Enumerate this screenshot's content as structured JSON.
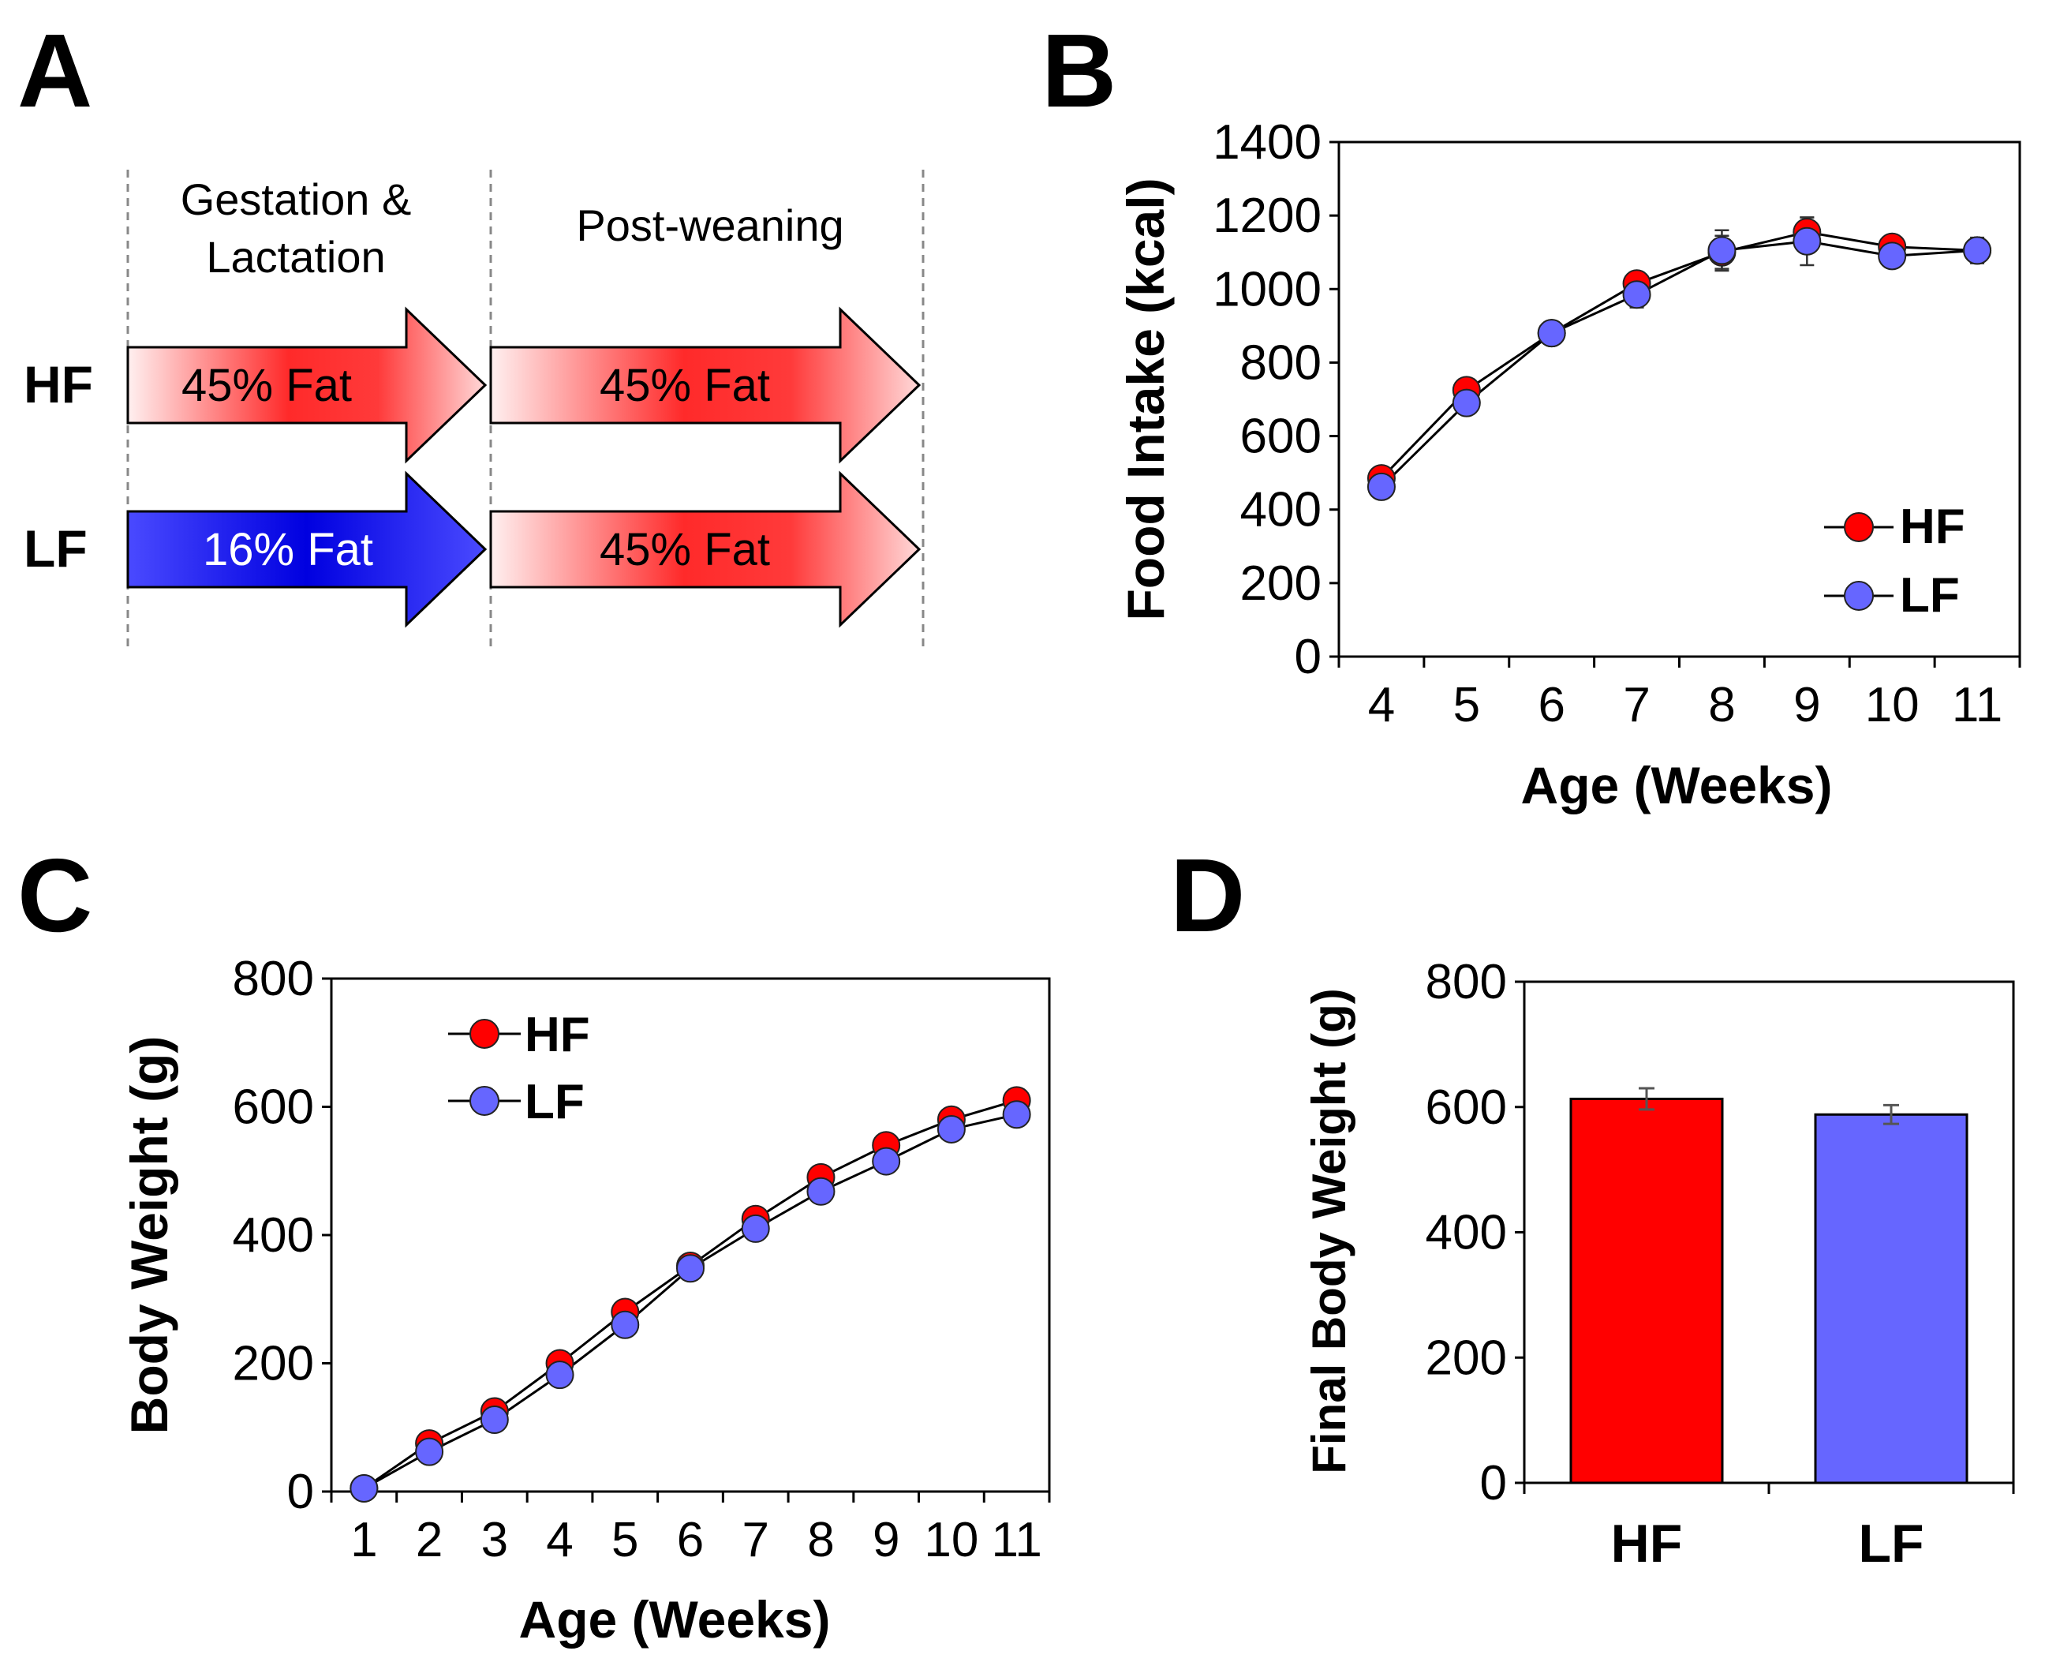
{
  "panel_labels": {
    "a": "A",
    "b": "B",
    "c": "C",
    "d": "D"
  },
  "colors": {
    "hf": "#ff0000",
    "lf": "#6666ff",
    "lf_arrow": "#1a1aee",
    "hf_arrow": "#ff2020"
  },
  "panel_a": {
    "phase1_line1": "Gestation &",
    "phase1_line2": "Lactation",
    "phase2": "Post-weaning",
    "group_hf": "HF",
    "group_lf": "LF",
    "hf_phase1": "45% Fat",
    "hf_phase2": "45% Fat",
    "lf_phase1": "16% Fat",
    "lf_phase2": "45% Fat"
  },
  "chart_data": [
    {
      "id": "B",
      "type": "line",
      "x": [
        4,
        5,
        6,
        7,
        8,
        9,
        10,
        11
      ],
      "xlabel": "Age (Weeks)",
      "ylabel": "Food Intake (kcal)",
      "ylim": [
        0,
        1400
      ],
      "yticks": [
        0,
        200,
        400,
        600,
        800,
        1000,
        1200,
        1400
      ],
      "legend": "bottom-right",
      "series": [
        {
          "name": "HF",
          "values": [
            485,
            725,
            880,
            1015,
            1100,
            1155,
            1115,
            1105
          ],
          "errors": [
            15,
            20,
            25,
            30,
            45,
            40,
            30,
            35
          ]
        },
        {
          "name": "LF",
          "values": [
            462,
            690,
            880,
            985,
            1105,
            1130,
            1090,
            1105
          ],
          "errors": [
            15,
            20,
            30,
            35,
            55,
            65,
            25,
            30
          ]
        }
      ]
    },
    {
      "id": "C",
      "type": "line",
      "x": [
        1,
        2,
        3,
        4,
        5,
        6,
        7,
        8,
        9,
        10,
        11
      ],
      "xlabel": "Age (Weeks)",
      "ylabel": "Body Weight (g)",
      "ylim": [
        0,
        800
      ],
      "yticks": [
        0,
        200,
        400,
        600,
        800
      ],
      "legend": "top-left",
      "series": [
        {
          "name": "HF",
          "values": [
            5,
            75,
            125,
            200,
            280,
            352,
            425,
            490,
            540,
            580,
            610
          ]
        },
        {
          "name": "LF",
          "values": [
            5,
            62,
            112,
            182,
            260,
            348,
            410,
            468,
            515,
            565,
            588
          ]
        }
      ]
    },
    {
      "id": "D",
      "type": "bar",
      "categories": [
        "HF",
        "LF"
      ],
      "values": [
        613,
        588
      ],
      "errors": [
        17,
        15
      ],
      "ylabel": "Final Body Weight (g)",
      "ylim": [
        0,
        800
      ],
      "yticks": [
        0,
        200,
        400,
        600,
        800
      ]
    }
  ]
}
